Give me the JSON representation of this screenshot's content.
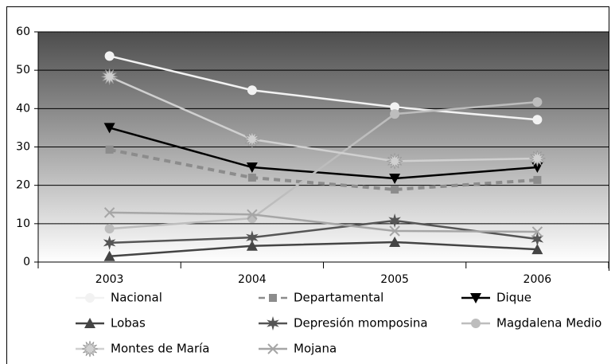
{
  "chart_data": {
    "type": "line",
    "categories": [
      "2003",
      "2004",
      "2005",
      "2006"
    ],
    "ylim": [
      0,
      60
    ],
    "yticks": [
      0,
      10,
      20,
      30,
      40,
      50,
      60
    ],
    "grid": true,
    "series": [
      {
        "name": "Nacional",
        "color": "#f2f2f2",
        "marker": "circle",
        "values": [
          53.7,
          44.8,
          40.4,
          37.1
        ]
      },
      {
        "name": "Departamental",
        "color": "#8c8c8c",
        "marker": "square",
        "dashed": true,
        "values": [
          29.3,
          22,
          18.9,
          21.4
        ]
      },
      {
        "name": "Dique",
        "color": "#000000",
        "marker": "triangle-down",
        "values": [
          35,
          24.7,
          21.8,
          24.7
        ]
      },
      {
        "name": "Lobas",
        "color": "#444444",
        "marker": "triangle-up",
        "values": [
          1.5,
          4.2,
          5.2,
          3.3
        ]
      },
      {
        "name": "Depresión momposina",
        "color": "#555555",
        "marker": "star",
        "values": [
          5,
          6.4,
          10.8,
          6
        ]
      },
      {
        "name": "Magdalena Medio",
        "color": "#bdbdbd",
        "marker": "circle",
        "values": [
          8.7,
          11.4,
          38.6,
          41.7
        ]
      },
      {
        "name": "Montes de María",
        "color": "#d0d0d0",
        "marker": "burst",
        "values": [
          48.3,
          32,
          26.3,
          27
        ]
      },
      {
        "name": "Mojana",
        "color": "#a6a6a6",
        "marker": "x",
        "values": [
          12.9,
          12.4,
          8.1,
          7.9
        ]
      }
    ]
  }
}
